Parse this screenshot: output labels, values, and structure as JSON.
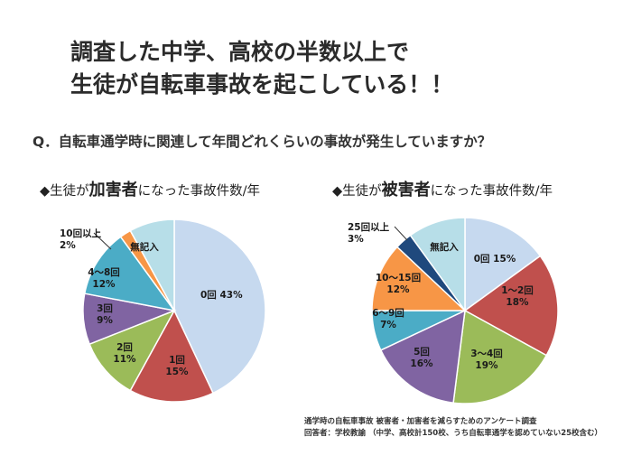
{
  "headline": {
    "line1": "調査した中学、高校の半数以上で",
    "line2": "生徒が自転車事故を起こしている！！"
  },
  "question": "Q．自転車通学時に関連して年間どれくらいの事故が発生していますか？",
  "charts": {
    "left": {
      "prefix": "◆生徒が",
      "emph": "加害者",
      "suffix": "になった事故件数/年"
    },
    "right": {
      "prefix": "◆生徒が",
      "emph": "被害者",
      "suffix": "になった事故件数/年"
    }
  },
  "source": {
    "line1": "通学時の自転車事故 被害者・加害者を減らすためのアンケート調査",
    "line2": "回答者：学校教諭 （中学、高校計150校、うち自転車通学を認めていない25校含む）"
  },
  "chart_data": [
    {
      "type": "pie",
      "title": "◆生徒が加害者になった事故件数/年",
      "slices": [
        {
          "label": "0回",
          "value": 43,
          "color": "#c6d9ef"
        },
        {
          "label": "1回",
          "value": 15,
          "color": "#c0504d"
        },
        {
          "label": "2回",
          "value": 11,
          "color": "#9bbb59"
        },
        {
          "label": "3回",
          "value": 9,
          "color": "#8064a2"
        },
        {
          "label": "4～8回",
          "value": 12,
          "color": "#4bacc6"
        },
        {
          "label": "10回以上",
          "value": 2,
          "color": "#f79646"
        },
        {
          "label": "無記入",
          "value": 8,
          "color": "#b7dee8"
        }
      ]
    },
    {
      "type": "pie",
      "title": "◆生徒が被害者になった事故件数/年",
      "slices": [
        {
          "label": "0回",
          "value": 15,
          "color": "#c6d9ef"
        },
        {
          "label": "1～2回",
          "value": 18,
          "color": "#c0504d"
        },
        {
          "label": "3～4回",
          "value": 19,
          "color": "#9bbb59"
        },
        {
          "label": "5回",
          "value": 16,
          "color": "#8064a2"
        },
        {
          "label": "6～9回",
          "value": 7,
          "color": "#4bacc6"
        },
        {
          "label": "10～15回",
          "value": 12,
          "color": "#f79646"
        },
        {
          "label": "25回以上",
          "value": 3,
          "color": "#1f497d"
        },
        {
          "label": "無記入",
          "value": 10,
          "color": "#b7dee8"
        }
      ]
    }
  ]
}
